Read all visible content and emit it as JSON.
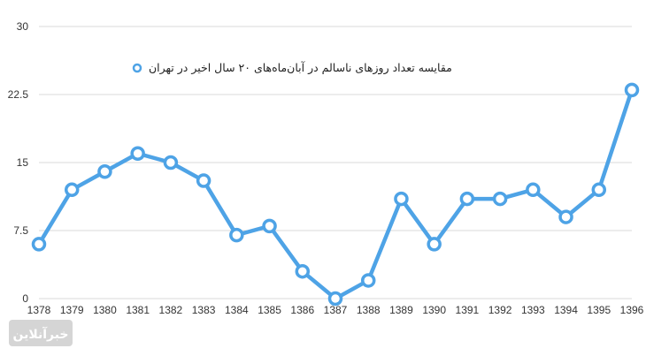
{
  "chart_data": {
    "type": "line",
    "title": "",
    "xlabel": "",
    "ylabel": "",
    "categories": [
      "1378",
      "1379",
      "1380",
      "1381",
      "1382",
      "1383",
      "1384",
      "1385",
      "1386",
      "1387",
      "1388",
      "1389",
      "1390",
      "1391",
      "1392",
      "1393",
      "1394",
      "1395",
      "1396"
    ],
    "series": [
      {
        "name": "مقایسه تعداد روزهای ناسالم در آبان‌ماه‌های ۲۰ سال اخیر در تهران",
        "values": [
          6,
          12,
          14,
          16,
          15,
          13,
          7,
          8,
          3,
          0,
          2,
          11,
          6,
          11,
          11,
          12,
          9,
          12,
          23
        ]
      }
    ],
    "y_ticks": [
      "0",
      "7.5",
      "15",
      "22.5",
      "30"
    ],
    "y_tick_values": [
      0,
      7.5,
      15,
      22.5,
      30
    ],
    "ylim": [
      0,
      30
    ],
    "grid": true,
    "legend": "top-center",
    "colors": {
      "line": "#4ea3e6",
      "grid": "#d9d9d9",
      "marker_fill": "#ffffff"
    }
  },
  "watermark": {
    "text": "خبرآنلاین"
  }
}
